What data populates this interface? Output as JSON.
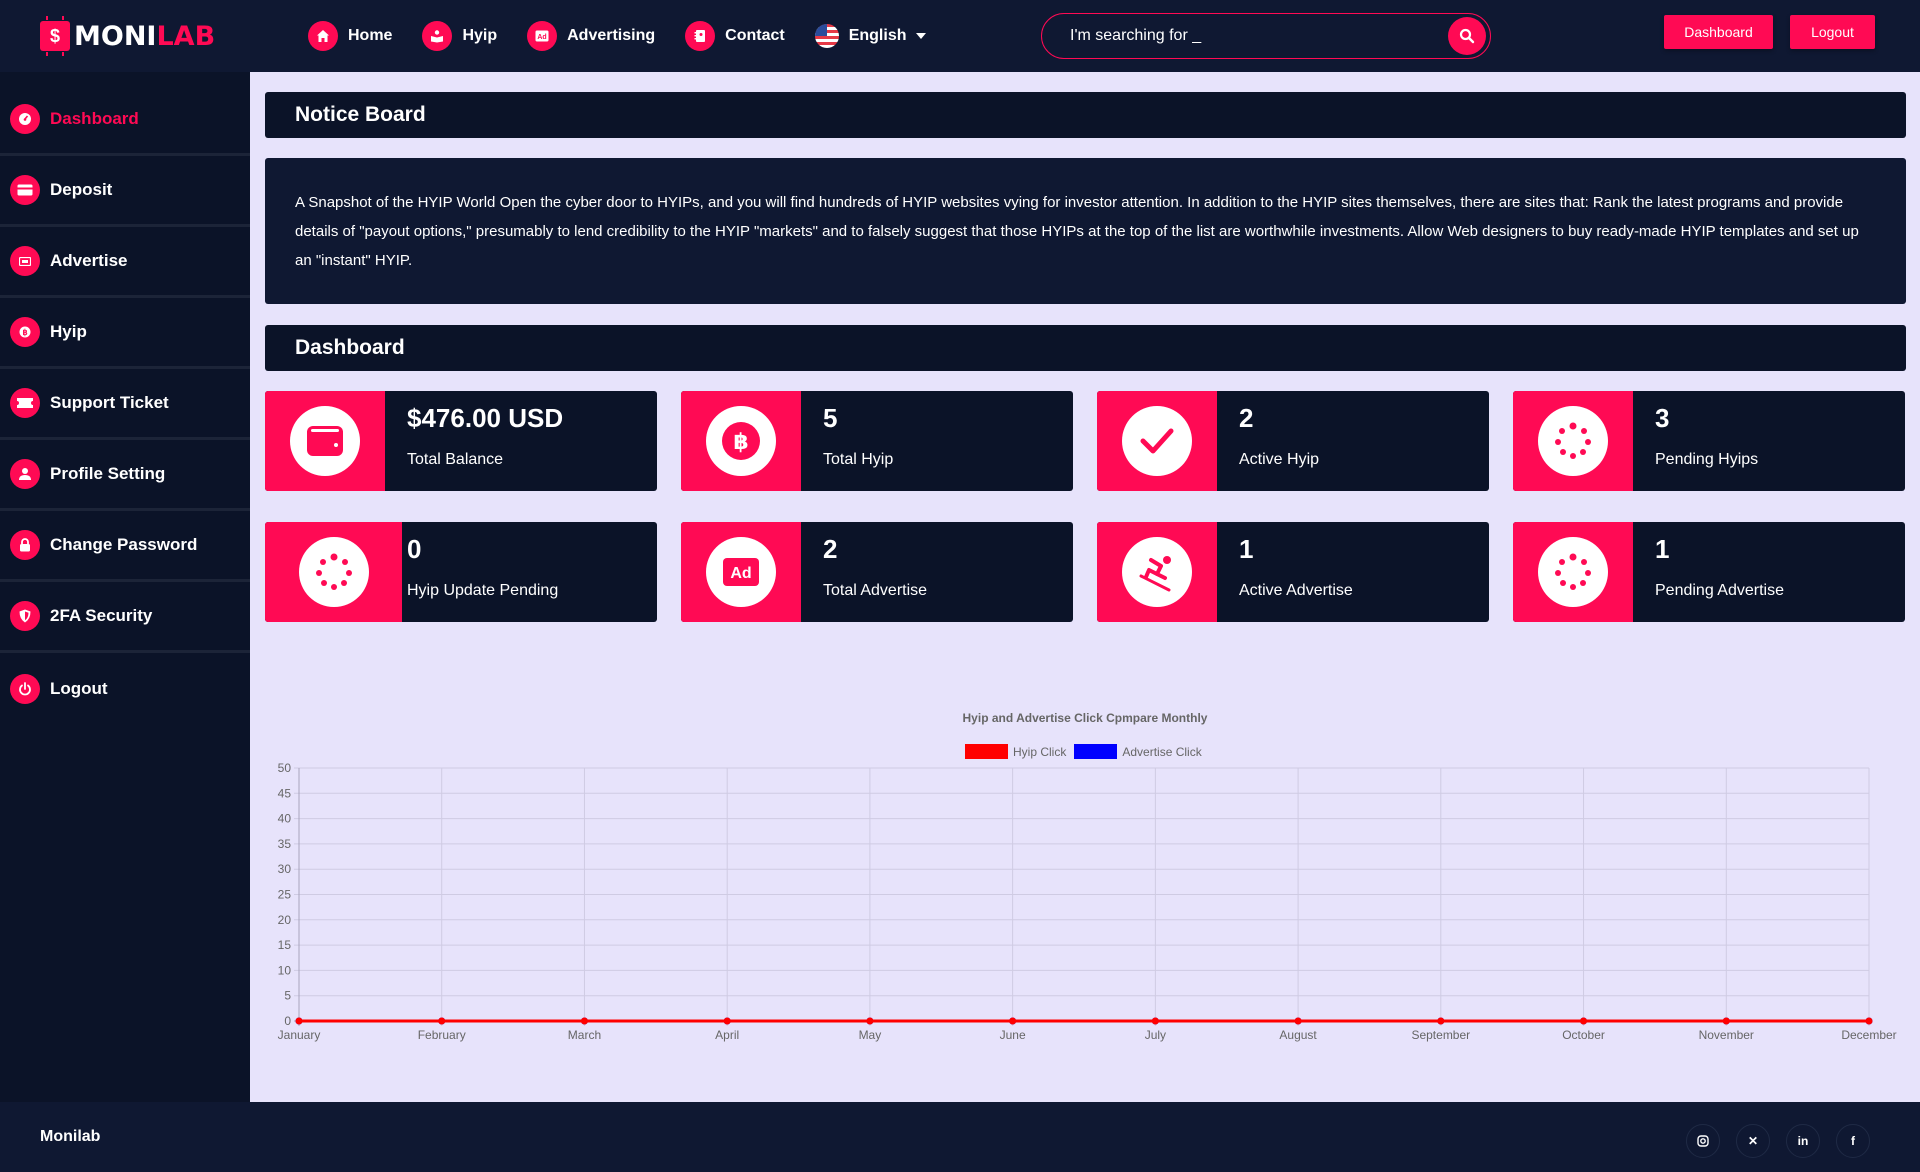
{
  "header": {
    "logo": {
      "part1": "MONI",
      "part2": "LAB",
      "chip_symbol": "$"
    },
    "nav": [
      {
        "label": "Home",
        "icon": "home-icon"
      },
      {
        "label": "Hyip",
        "icon": "reader-icon"
      },
      {
        "label": "Advertising",
        "icon": "ad-icon"
      },
      {
        "label": "Contact",
        "icon": "contact-icon"
      }
    ],
    "language": {
      "label": "English",
      "icon": "us-flag-icon"
    },
    "search": {
      "placeholder": "I'm searching for _",
      "value": ""
    },
    "buttons": {
      "dashboard": "Dashboard",
      "logout": "Logout"
    }
  },
  "sidebar": {
    "items": [
      {
        "label": "Dashboard",
        "icon": "dashboard-gauge-icon",
        "active": true
      },
      {
        "label": "Deposit",
        "icon": "credit-card-icon"
      },
      {
        "label": "Advertise",
        "icon": "ad-icon"
      },
      {
        "label": "Hyip",
        "icon": "bitcoin-icon"
      },
      {
        "label": "Support Ticket",
        "icon": "ticket-icon"
      },
      {
        "label": "Profile Setting",
        "icon": "user-icon"
      },
      {
        "label": "Change Password",
        "icon": "lock-icon"
      },
      {
        "label": "2FA Security",
        "icon": "shield-icon"
      },
      {
        "label": "Logout",
        "icon": "power-icon"
      }
    ]
  },
  "notice": {
    "title": "Notice Board",
    "body": "A Snapshot of the HYIP World Open the cyber door to HYIPs, and you will find hundreds of HYIP websites vying for investor attention. In addition to the HYIP sites themselves, there are sites that: Rank the latest programs and provide details of \"payout options,\" presumably to lend credibility to the HYIP \"markets\" and to falsely suggest that those HYIPs at the top of the list are worthwhile investments. Allow Web designers to buy ready-made HYIP templates and set up an \"instant\" HYIP."
  },
  "dashboard": {
    "title": "Dashboard",
    "cards": [
      {
        "value": "$476.00 USD",
        "label": "Total Balance",
        "icon": "wallet-icon"
      },
      {
        "value": "5",
        "label": "Total Hyip",
        "icon": "bitcoin-icon"
      },
      {
        "value": "2",
        "label": "Active Hyip",
        "icon": "check-icon"
      },
      {
        "value": "3",
        "label": "Pending Hyips",
        "icon": "spinner-icon"
      },
      {
        "value": "0",
        "label": "Hyip Update Pending",
        "icon": "spinner-icon"
      },
      {
        "value": "2",
        "label": "Total Advertise",
        "icon": "ad-icon"
      },
      {
        "value": "1",
        "label": "Active Advertise",
        "icon": "skiing-icon"
      },
      {
        "value": "1",
        "label": "Pending Advertise",
        "icon": "spinner-icon"
      }
    ]
  },
  "chart_data": {
    "type": "line",
    "title": "Hyip and Advertise Click Cpmpare Monthly",
    "categories": [
      "January",
      "February",
      "March",
      "April",
      "May",
      "June",
      "July",
      "August",
      "September",
      "October",
      "November",
      "December"
    ],
    "series": [
      {
        "name": "Hyip Click",
        "color": "#ff0000",
        "values": [
          0,
          0,
          0,
          0,
          0,
          0,
          0,
          0,
          0,
          0,
          0,
          0
        ]
      },
      {
        "name": "Advertise Click",
        "color": "#0000ff",
        "values": [
          0,
          0,
          0,
          0,
          0,
          0,
          0,
          0,
          0,
          0,
          0,
          0
        ]
      }
    ],
    "yticks": [
      0,
      5,
      10,
      15,
      20,
      25,
      30,
      35,
      40,
      45,
      50
    ],
    "ylim": [
      0,
      50
    ],
    "xlabel": "",
    "ylabel": "",
    "grid": true,
    "legend_position": "top"
  },
  "footer": {
    "brand": "Monilab",
    "socials": [
      {
        "name": "instagram",
        "glyph": "◎"
      },
      {
        "name": "x",
        "glyph": "✕"
      },
      {
        "name": "linkedin",
        "glyph": "in"
      },
      {
        "name": "facebook",
        "glyph": "f"
      }
    ]
  },
  "colors": {
    "accent": "#ff0a54",
    "header_bg": "#0f1832",
    "panel_bg": "#0b1328",
    "page_bg": "#e7e3fb"
  }
}
